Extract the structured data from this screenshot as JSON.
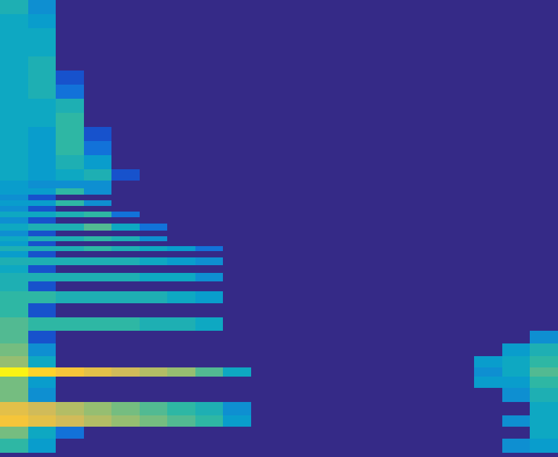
{
  "chart_data": {
    "type": "heatmap",
    "tick_labels": false,
    "grid": false,
    "xlim": [
      0,
      800
    ],
    "ylim": [
      648,
      0
    ],
    "zlim": [
      0,
      1
    ],
    "x": [
      20,
      60,
      100,
      140,
      180,
      220,
      260,
      300,
      340,
      380,
      420,
      460,
      500,
      540,
      580,
      620,
      660,
      700,
      740,
      780
    ],
    "y": [
      10,
      30,
      50,
      70,
      90,
      110,
      130,
      150,
      170,
      190,
      210,
      230,
      250,
      262,
      272,
      280,
      288,
      296,
      304,
      312,
      322,
      332,
      338,
      345,
      352,
      360,
      370,
      381,
      392,
      405,
      420,
      440,
      460,
      478,
      495,
      515,
      527,
      540,
      560,
      580,
      597,
      612,
      632
    ],
    "z": [
      [
        0.45,
        0.3,
        0,
        0,
        0,
        0,
        0,
        0,
        0,
        0,
        0,
        0,
        0,
        0,
        0,
        0,
        0,
        0,
        0,
        0
      ],
      [
        0.4,
        0.35,
        0,
        0,
        0,
        0,
        0,
        0,
        0,
        0,
        0,
        0,
        0,
        0,
        0,
        0,
        0,
        0,
        0,
        0
      ],
      [
        0.4,
        0.4,
        0,
        0,
        0,
        0,
        0,
        0,
        0,
        0,
        0,
        0,
        0,
        0,
        0,
        0,
        0,
        0,
        0,
        0
      ],
      [
        0.4,
        0.4,
        0,
        0,
        0,
        0,
        0,
        0,
        0,
        0,
        0,
        0,
        0,
        0,
        0,
        0,
        0,
        0,
        0,
        0
      ],
      [
        0.4,
        0.45,
        0,
        0,
        0,
        0,
        0,
        0,
        0,
        0,
        0,
        0,
        0,
        0,
        0,
        0,
        0,
        0,
        0,
        0
      ],
      [
        0.4,
        0.45,
        0.1,
        0,
        0,
        0,
        0,
        0,
        0,
        0,
        0,
        0,
        0,
        0,
        0,
        0,
        0,
        0,
        0,
        0
      ],
      [
        0.4,
        0.45,
        0.2,
        0,
        0,
        0,
        0,
        0,
        0,
        0,
        0,
        0,
        0,
        0,
        0,
        0,
        0,
        0,
        0,
        0
      ],
      [
        0.4,
        0.4,
        0.45,
        0,
        0,
        0,
        0,
        0,
        0,
        0,
        0,
        0,
        0,
        0,
        0,
        0,
        0,
        0,
        0,
        0
      ],
      [
        0.4,
        0.4,
        0.5,
        0,
        0,
        0,
        0,
        0,
        0,
        0,
        0,
        0,
        0,
        0,
        0,
        0,
        0,
        0,
        0,
        0
      ],
      [
        0.4,
        0.35,
        0.5,
        0.1,
        0,
        0,
        0,
        0,
        0,
        0,
        0,
        0,
        0,
        0,
        0,
        0,
        0,
        0,
        0,
        0
      ],
      [
        0.4,
        0.35,
        0.5,
        0.2,
        0,
        0,
        0,
        0,
        0,
        0,
        0,
        0,
        0,
        0,
        0,
        0,
        0,
        0,
        0,
        0
      ],
      [
        0.4,
        0.35,
        0.45,
        0.35,
        0,
        0,
        0,
        0,
        0,
        0,
        0,
        0,
        0,
        0,
        0,
        0,
        0,
        0,
        0,
        0
      ],
      [
        0.4,
        0.35,
        0.4,
        0.45,
        0.1,
        0,
        0,
        0,
        0,
        0,
        0,
        0,
        0,
        0,
        0,
        0,
        0,
        0,
        0,
        0
      ],
      [
        0.35,
        0.3,
        0.3,
        0.3,
        0,
        0,
        0,
        0,
        0,
        0,
        0,
        0,
        0,
        0,
        0,
        0,
        0,
        0,
        0,
        0
      ],
      [
        0.35,
        0.35,
        0.5,
        0.3,
        0,
        0,
        0,
        0,
        0,
        0,
        0,
        0,
        0,
        0,
        0,
        0,
        0,
        0,
        0,
        0
      ],
      [
        0.3,
        0.1,
        0,
        0,
        0,
        0,
        0,
        0,
        0,
        0,
        0,
        0,
        0,
        0,
        0,
        0,
        0,
        0,
        0,
        0
      ],
      [
        0.35,
        0.35,
        0.5,
        0.3,
        0,
        0,
        0,
        0,
        0,
        0,
        0,
        0,
        0,
        0,
        0,
        0,
        0,
        0,
        0,
        0
      ],
      [
        0.3,
        0.1,
        0,
        0,
        0,
        0,
        0,
        0,
        0,
        0,
        0,
        0,
        0,
        0,
        0,
        0,
        0,
        0,
        0,
        0
      ],
      [
        0.4,
        0.4,
        0.45,
        0.5,
        0.2,
        0,
        0,
        0,
        0,
        0,
        0,
        0,
        0,
        0,
        0,
        0,
        0,
        0,
        0,
        0
      ],
      [
        0.3,
        0.1,
        0,
        0,
        0,
        0,
        0,
        0,
        0,
        0,
        0,
        0,
        0,
        0,
        0,
        0,
        0,
        0,
        0,
        0
      ],
      [
        0.4,
        0.45,
        0.45,
        0.55,
        0.4,
        0.2,
        0,
        0,
        0,
        0,
        0,
        0,
        0,
        0,
        0,
        0,
        0,
        0,
        0,
        0
      ],
      [
        0.3,
        0.1,
        0,
        0,
        0,
        0,
        0,
        0,
        0,
        0,
        0,
        0,
        0,
        0,
        0,
        0,
        0,
        0,
        0,
        0
      ],
      [
        0.4,
        0.45,
        0.45,
        0.5,
        0.45,
        0.3,
        0,
        0,
        0,
        0,
        0,
        0,
        0,
        0,
        0,
        0,
        0,
        0,
        0,
        0
      ],
      [
        0.35,
        0.1,
        0,
        0,
        0,
        0,
        0,
        0,
        0,
        0,
        0,
        0,
        0,
        0,
        0,
        0,
        0,
        0,
        0,
        0
      ],
      [
        0.45,
        0.45,
        0.45,
        0.5,
        0.45,
        0.4,
        0.35,
        0.2,
        0,
        0,
        0,
        0,
        0,
        0,
        0,
        0,
        0,
        0,
        0,
        0
      ],
      [
        0.35,
        0.1,
        0,
        0,
        0,
        0,
        0,
        0,
        0,
        0,
        0,
        0,
        0,
        0,
        0,
        0,
        0,
        0,
        0,
        0
      ],
      [
        0.45,
        0.45,
        0.45,
        0.45,
        0.45,
        0.4,
        0.35,
        0.3,
        0,
        0,
        0,
        0,
        0,
        0,
        0,
        0,
        0,
        0,
        0,
        0
      ],
      [
        0.4,
        0.1,
        0,
        0,
        0,
        0,
        0,
        0,
        0,
        0,
        0,
        0,
        0,
        0,
        0,
        0,
        0,
        0,
        0,
        0
      ],
      [
        0.45,
        0.45,
        0.45,
        0.45,
        0.45,
        0.4,
        0.4,
        0.3,
        0,
        0,
        0,
        0,
        0,
        0,
        0,
        0,
        0,
        0,
        0,
        0
      ],
      [
        0.45,
        0.1,
        0,
        0,
        0,
        0,
        0,
        0,
        0,
        0,
        0,
        0,
        0,
        0,
        0,
        0,
        0,
        0,
        0,
        0
      ],
      [
        0.5,
        0.5,
        0.45,
        0.45,
        0.45,
        0.45,
        0.4,
        0.35,
        0,
        0,
        0,
        0,
        0,
        0,
        0,
        0,
        0,
        0,
        0,
        0
      ],
      [
        0.5,
        0.1,
        0,
        0,
        0,
        0,
        0,
        0,
        0,
        0,
        0,
        0,
        0,
        0,
        0,
        0,
        0,
        0,
        0,
        0
      ],
      [
        0.55,
        0.5,
        0.5,
        0.5,
        0.5,
        0.45,
        0.45,
        0.4,
        0,
        0,
        0,
        0,
        0,
        0,
        0,
        0,
        0,
        0,
        0,
        0
      ],
      [
        0.55,
        0.1,
        0,
        0,
        0,
        0,
        0,
        0,
        0,
        0,
        0,
        0,
        0,
        0,
        0,
        0,
        0,
        0,
        0,
        0.3
      ],
      [
        0.6,
        0.3,
        0,
        0,
        0,
        0,
        0,
        0,
        0,
        0,
        0,
        0,
        0,
        0,
        0,
        0,
        0,
        0,
        0.35,
        0.45
      ],
      [
        0.65,
        0.4,
        0,
        0,
        0,
        0,
        0,
        0,
        0,
        0,
        0,
        0,
        0,
        0,
        0,
        0,
        0,
        0.35,
        0.4,
        0.5
      ],
      [
        0.98,
        0.9,
        0.85,
        0.8,
        0.75,
        0.7,
        0.65,
        0.55,
        0.4,
        0,
        0,
        0,
        0,
        0,
        0,
        0,
        0,
        0.3,
        0.4,
        0.55
      ],
      [
        0.6,
        0.35,
        0,
        0,
        0,
        0,
        0,
        0,
        0,
        0,
        0,
        0,
        0,
        0,
        0,
        0,
        0,
        0.35,
        0.35,
        0.5
      ],
      [
        0.6,
        0.3,
        0,
        0,
        0,
        0,
        0,
        0,
        0,
        0,
        0,
        0,
        0,
        0,
        0,
        0,
        0,
        0,
        0.3,
        0.45
      ],
      [
        0.8,
        0.75,
        0.7,
        0.65,
        0.6,
        0.55,
        0.5,
        0.45,
        0.3,
        0,
        0,
        0,
        0,
        0,
        0,
        0,
        0,
        0,
        0,
        0.4
      ],
      [
        0.85,
        0.8,
        0.75,
        0.7,
        0.65,
        0.6,
        0.55,
        0.5,
        0.35,
        0,
        0,
        0,
        0,
        0,
        0,
        0,
        0,
        0,
        0.3,
        0.4
      ],
      [
        0.6,
        0.4,
        0.2,
        0,
        0,
        0,
        0,
        0,
        0,
        0,
        0,
        0,
        0,
        0,
        0,
        0,
        0,
        0,
        0,
        0.4
      ],
      [
        0.5,
        0.35,
        0,
        0,
        0,
        0,
        0,
        0,
        0,
        0,
        0,
        0,
        0,
        0,
        0,
        0,
        0,
        0,
        0.3,
        0.35
      ]
    ]
  }
}
